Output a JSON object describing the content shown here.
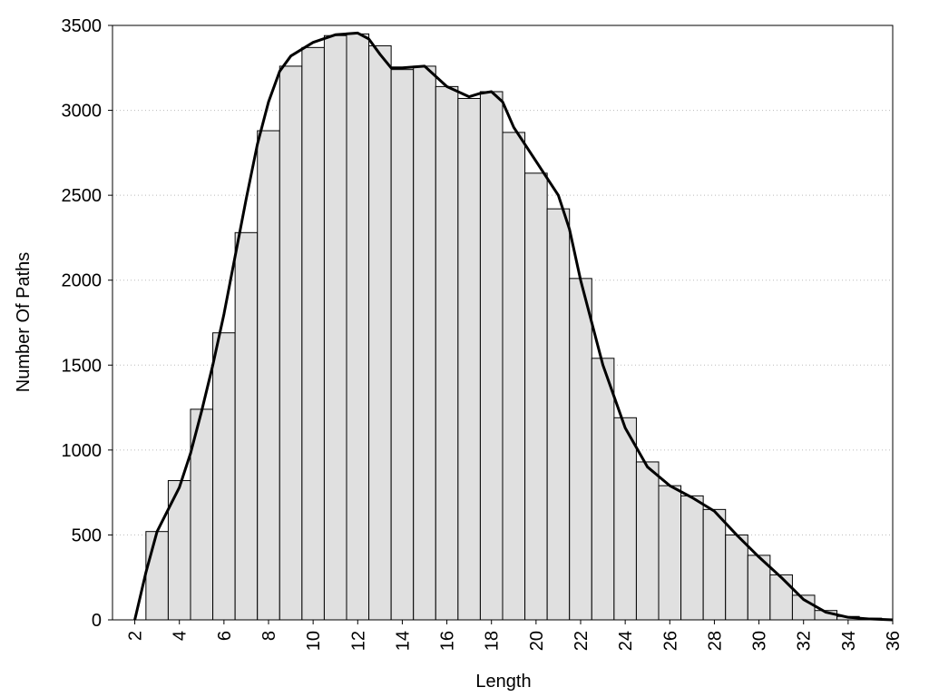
{
  "chart_data": {
    "type": "histogram",
    "x_label": "Length",
    "y_label": "Number Of Paths",
    "bins": [
      2.5,
      3.5,
      4.5,
      5.5,
      6.5,
      7.5,
      8.5,
      9.5,
      10.5,
      11.5,
      12.5,
      13.5,
      14.5,
      15.5,
      16.5,
      17.5,
      18.5,
      19.5,
      20.5,
      21.5,
      22.5,
      23.5,
      24.5,
      25.5,
      26.5,
      27.5,
      28.5,
      29.5,
      30.5,
      31.5,
      32.5,
      33.5,
      34.5,
      35.5
    ],
    "values": [
      520,
      820,
      1240,
      1690,
      2280,
      2880,
      3260,
      3370,
      3440,
      3450,
      3380,
      3240,
      3260,
      3140,
      3070,
      3110,
      2870,
      2630,
      2420,
      2010,
      1540,
      1190,
      930,
      790,
      730,
      650,
      500,
      380,
      265,
      145,
      55,
      20,
      10
    ],
    "color": "#e0e0e0",
    "curve": {
      "color": "#000000",
      "x": [
        2,
        2.5,
        3,
        3.5,
        4,
        4.5,
        5,
        5.5,
        6,
        6.5,
        7,
        7.5,
        8,
        8.5,
        9,
        10,
        11,
        12,
        12.5,
        13,
        13.5,
        14,
        15,
        15.5,
        16,
        17,
        17.5,
        18,
        18.5,
        19,
        20,
        21,
        21.5,
        22,
        23,
        24,
        25,
        26,
        27,
        28,
        29,
        30,
        31,
        32,
        33,
        34,
        35,
        36
      ],
      "values": [
        0,
        280,
        520,
        650,
        780,
        980,
        1230,
        1500,
        1800,
        2140,
        2480,
        2800,
        3050,
        3230,
        3320,
        3400,
        3445,
        3455,
        3420,
        3330,
        3250,
        3250,
        3260,
        3200,
        3140,
        3080,
        3100,
        3110,
        3050,
        2900,
        2700,
        2500,
        2300,
        2000,
        1500,
        1130,
        900,
        790,
        720,
        640,
        500,
        370,
        250,
        120,
        45,
        15,
        5,
        0
      ]
    },
    "xlim": [
      1,
      36
    ],
    "xticks": [
      2,
      4,
      6,
      8,
      10,
      12,
      14,
      16,
      18,
      20,
      22,
      24,
      26,
      28,
      30,
      32,
      34,
      36
    ],
    "ylim": [
      0,
      3500
    ],
    "yticks": [
      0,
      500,
      1000,
      1500,
      2000,
      2500,
      3000,
      3500
    ],
    "grid": true
  }
}
